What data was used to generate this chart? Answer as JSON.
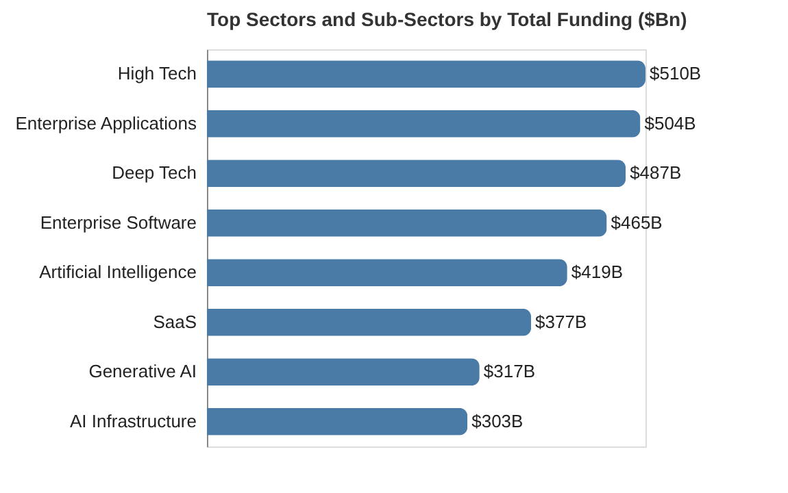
{
  "chart_data": {
    "type": "bar",
    "orientation": "horizontal",
    "title": "Top Sectors and Sub-Sectors by Total Funding ($Bn)",
    "categories": [
      "High Tech",
      "Enterprise Applications",
      "Deep Tech",
      "Enterprise Software",
      "Artificial Intelligence",
      "SaaS",
      "Generative AI",
      "AI Infrastructure"
    ],
    "values": [
      510,
      504,
      487,
      465,
      419,
      377,
      317,
      303
    ],
    "value_labels": [
      "$510B",
      "$504B",
      "$487B",
      "$465B",
      "$419B",
      "$377B",
      "$317B",
      "$303B"
    ],
    "color": "#4a7ba7"
  }
}
